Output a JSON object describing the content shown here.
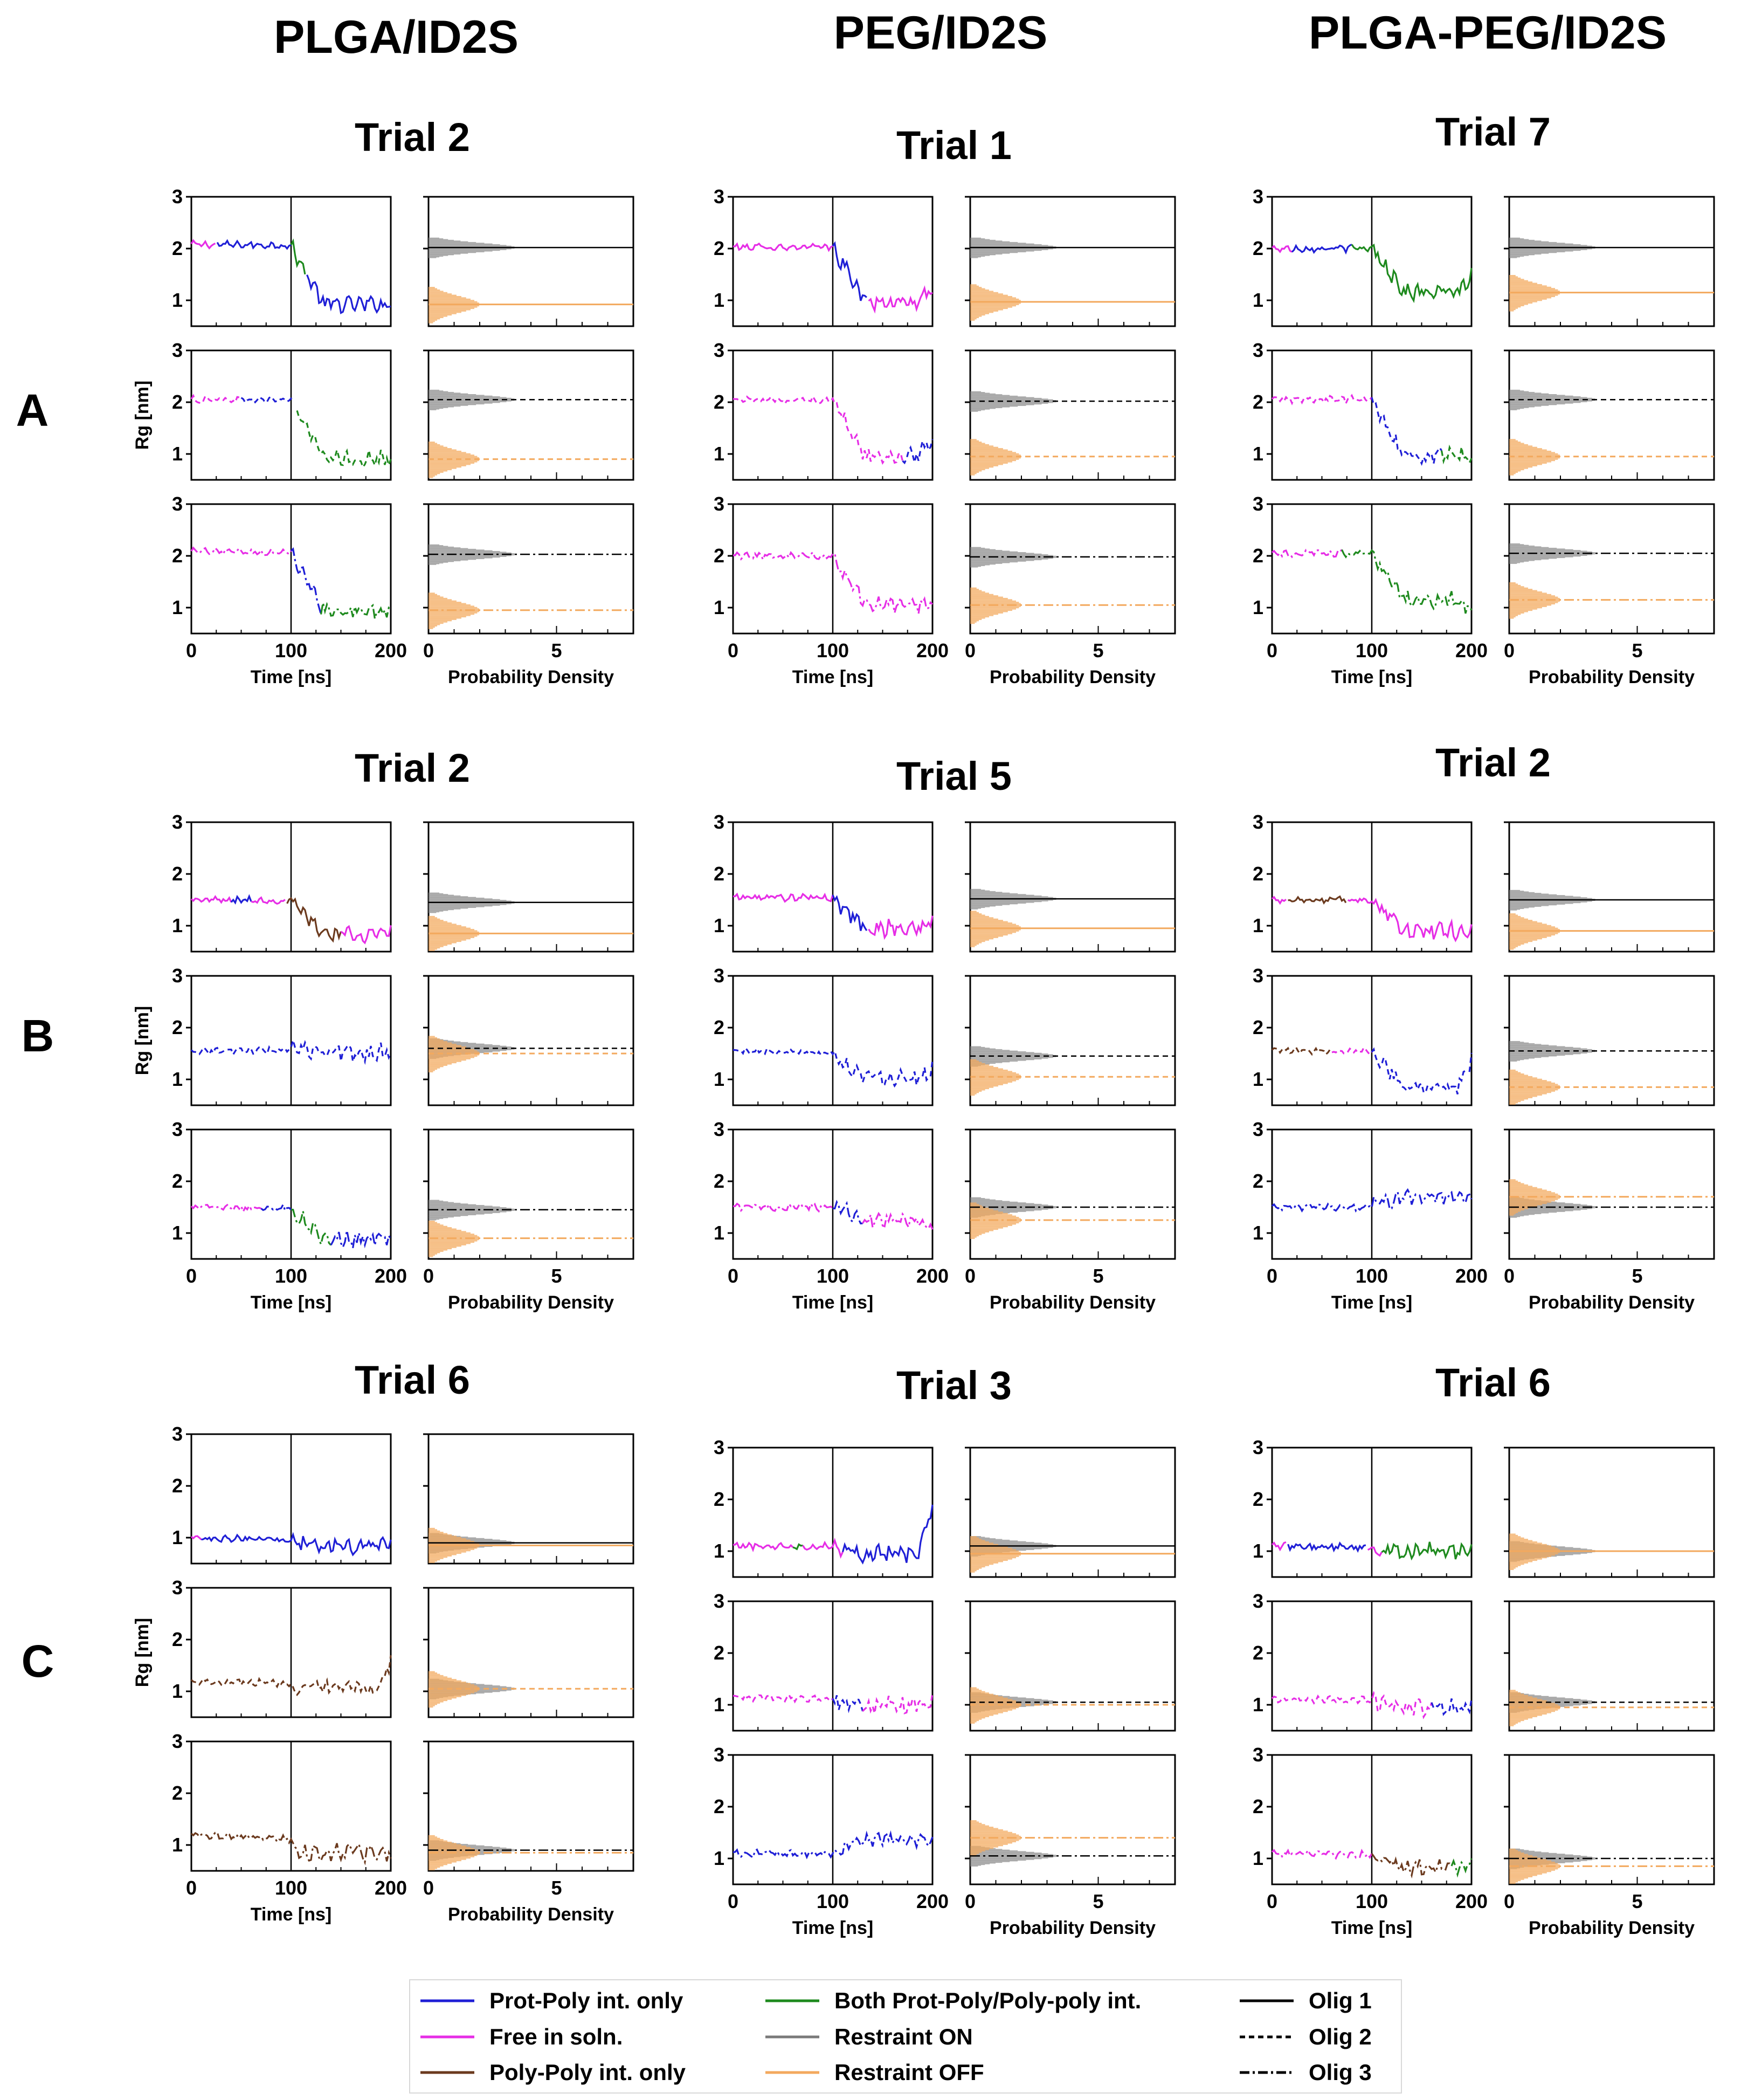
{
  "figure": {
    "column_headers": [
      "PLGA/ID2S",
      "PEG/ID2S",
      "PLGA-PEG/ID2S"
    ],
    "row_labels": [
      "A",
      "B",
      "C"
    ],
    "ylabel": "Rg [nm]",
    "xlabel_time": "Time [ns]",
    "xlabel_density": "Probability Density",
    "time_ticks": [
      "0",
      "100",
      "200"
    ],
    "density_ticks": [
      "0",
      "5"
    ],
    "rg_ticks": [
      "1",
      "2",
      "3"
    ]
  },
  "legend": {
    "items": [
      {
        "label": "Prot-Poly int. only",
        "color": "#1f1fd6",
        "style": "solid"
      },
      {
        "label": "Free in soln.",
        "color": "#e62ee6",
        "style": "solid"
      },
      {
        "label": "Poly-Poly int. only",
        "color": "#6b3a1e",
        "style": "solid"
      },
      {
        "label": "Both Prot-Poly/Poly-poly int.",
        "color": "#1e8a1e",
        "style": "solid"
      },
      {
        "label": "Restraint ON",
        "color": "#7a7a7a",
        "style": "solid"
      },
      {
        "label": "Restraint OFF",
        "color": "#f3a95e",
        "style": "solid"
      },
      {
        "label": "Olig 1",
        "color": "#000000",
        "style": "solid"
      },
      {
        "label": "Olig 2",
        "color": "#000000",
        "style": "dashed"
      },
      {
        "label": "Olig 3",
        "color": "#000000",
        "style": "dashdot"
      }
    ]
  },
  "chart_data": [
    {
      "type": "line",
      "row": "A",
      "column": "PLGA/ID2S",
      "title": "Trial 2",
      "xlabel": "Time [ns]",
      "ylabel": "Rg [nm]",
      "xlim": [
        0,
        200
      ],
      "ylim": [
        0.5,
        3
      ],
      "series": [
        {
          "name": "Olig 1",
          "style": "solid",
          "rg_start": 2.08,
          "rg_end": 0.92,
          "mean_on": 2.02,
          "mean_off": 0.92,
          "segments": [
            [
              "#e62ee6",
              0,
              25
            ],
            [
              "#1f1fd6",
              25,
              100
            ],
            [
              "#1e8a1e",
              100,
              115
            ],
            [
              "#1f1fd6",
              115,
              200
            ]
          ]
        },
        {
          "name": "Olig 2",
          "style": "dashed",
          "rg_start": 2.05,
          "rg_end": 0.9,
          "mean_on": 2.05,
          "mean_off": 0.9,
          "segments": [
            [
              "#e62ee6",
              0,
              50
            ],
            [
              "#1f1fd6",
              50,
              105
            ],
            [
              "#1e8a1e",
              105,
              200
            ]
          ]
        },
        {
          "name": "Olig 3",
          "style": "dashdot",
          "rg_start": 2.08,
          "rg_end": 0.95,
          "mean_on": 2.03,
          "mean_off": 0.95,
          "segments": [
            [
              "#e62ee6",
              0,
              100
            ],
            [
              "#1f1fd6",
              100,
              130
            ],
            [
              "#1e8a1e",
              130,
              200
            ]
          ]
        }
      ]
    },
    {
      "type": "line",
      "row": "A",
      "column": "PEG/ID2S",
      "title": "Trial 1",
      "xlabel": "Time [ns]",
      "ylabel": "Rg [nm]",
      "xlim": [
        0,
        200
      ],
      "ylim": [
        0.5,
        3
      ],
      "series": [
        {
          "name": "Olig 1",
          "style": "solid",
          "rg_start": 2.03,
          "rg_end": 1.2,
          "mean_on": 2.02,
          "mean_off": 0.97,
          "segments": [
            [
              "#e62ee6",
              0,
              100
            ],
            [
              "#1f1fd6",
              100,
              135
            ],
            [
              "#e62ee6",
              135,
              200
            ]
          ]
        },
        {
          "name": "Olig 2",
          "style": "dashed",
          "rg_start": 2.05,
          "rg_end": 1.3,
          "mean_on": 2.02,
          "mean_off": 0.95,
          "segments": [
            [
              "#e62ee6",
              0,
              170
            ],
            [
              "#1f1fd6",
              170,
              200
            ]
          ]
        },
        {
          "name": "Olig 3",
          "style": "dashdot",
          "rg_start": 2.0,
          "rg_end": 1.05,
          "mean_on": 1.98,
          "mean_off": 1.05,
          "segments": [
            [
              "#e62ee6",
              0,
              200
            ]
          ]
        }
      ]
    },
    {
      "type": "line",
      "row": "A",
      "column": "PLGA-PEG/ID2S",
      "title": "Trial 7",
      "xlabel": "Time [ns]",
      "ylabel": "Rg [nm]",
      "xlim": [
        0,
        200
      ],
      "ylim": [
        0.5,
        3
      ],
      "series": [
        {
          "name": "Olig 1",
          "style": "solid",
          "rg_start": 2.0,
          "rg_end": 1.45,
          "mean_on": 2.02,
          "mean_off": 1.15,
          "segments": [
            [
              "#e62ee6",
              0,
              20
            ],
            [
              "#1f1fd6",
              20,
              80
            ],
            [
              "#1e8a1e",
              80,
              200
            ]
          ]
        },
        {
          "name": "Olig 2",
          "style": "dashed",
          "rg_start": 2.05,
          "rg_end": 0.95,
          "mean_on": 2.05,
          "mean_off": 0.95,
          "segments": [
            [
              "#e62ee6",
              0,
              100
            ],
            [
              "#1f1fd6",
              100,
              170
            ],
            [
              "#1e8a1e",
              170,
              200
            ]
          ]
        },
        {
          "name": "Olig 3",
          "style": "dashdot",
          "rg_start": 2.05,
          "rg_end": 0.95,
          "mean_on": 2.05,
          "mean_off": 1.15,
          "segments": [
            [
              "#e62ee6",
              0,
              70
            ],
            [
              "#1e8a1e",
              70,
              200
            ]
          ]
        }
      ]
    },
    {
      "type": "line",
      "row": "B",
      "column": "PLGA/ID2S",
      "title": "Trial 2",
      "xlabel": "Time [ns]",
      "ylabel": "Rg [nm]",
      "xlim": [
        0,
        200
      ],
      "ylim": [
        0.5,
        3
      ],
      "series": [
        {
          "name": "Olig 1",
          "style": "solid",
          "rg_start": 1.5,
          "rg_end": 0.85,
          "mean_on": 1.45,
          "mean_off": 0.85,
          "segments": [
            [
              "#e62ee6",
              0,
              40
            ],
            [
              "#1f1fd6",
              40,
              60
            ],
            [
              "#e62ee6",
              60,
              95
            ],
            [
              "#6b3a1e",
              95,
              150
            ],
            [
              "#e62ee6",
              150,
              200
            ]
          ]
        },
        {
          "name": "Olig 2",
          "style": "dashed",
          "rg_start": 1.55,
          "rg_end": 1.55,
          "mean_on": 1.6,
          "mean_off": 1.5,
          "segments": [
            [
              "#1f1fd6",
              0,
              200
            ]
          ]
        },
        {
          "name": "Olig 3",
          "style": "dashdot",
          "rg_start": 1.5,
          "rg_end": 0.9,
          "mean_on": 1.45,
          "mean_off": 0.9,
          "segments": [
            [
              "#e62ee6",
              0,
              70
            ],
            [
              "#1f1fd6",
              70,
              100
            ],
            [
              "#1e8a1e",
              100,
              140
            ],
            [
              "#1f1fd6",
              140,
              200
            ]
          ]
        }
      ]
    },
    {
      "type": "line",
      "row": "B",
      "column": "PEG/ID2S",
      "title": "Trial 5",
      "xlabel": "Time [ns]",
      "ylabel": "Rg [nm]",
      "xlim": [
        0,
        200
      ],
      "ylim": [
        0.5,
        3
      ],
      "series": [
        {
          "name": "Olig 1",
          "style": "solid",
          "rg_start": 1.55,
          "rg_end": 1.05,
          "mean_on": 1.52,
          "mean_off": 0.95,
          "segments": [
            [
              "#e62ee6",
              0,
              100
            ],
            [
              "#1f1fd6",
              100,
              135
            ],
            [
              "#e62ee6",
              135,
              200
            ]
          ]
        },
        {
          "name": "Olig 2",
          "style": "dashed",
          "rg_start": 1.55,
          "rg_end": 1.2,
          "mean_on": 1.45,
          "mean_off": 1.05,
          "segments": [
            [
              "#1f1fd6",
              0,
              200
            ]
          ]
        },
        {
          "name": "Olig 3",
          "style": "dashdot",
          "rg_start": 1.5,
          "rg_end": 1.1,
          "mean_on": 1.5,
          "mean_off": 1.25,
          "segments": [
            [
              "#e62ee6",
              0,
              100
            ],
            [
              "#1f1fd6",
              100,
              130
            ],
            [
              "#e62ee6",
              130,
              200
            ]
          ]
        }
      ]
    },
    {
      "type": "line",
      "row": "B",
      "column": "PLGA-PEG/ID2S",
      "title": "Trial 2",
      "xlabel": "Time [ns]",
      "ylabel": "Rg [nm]",
      "xlim": [
        0,
        200
      ],
      "ylim": [
        0.5,
        3
      ],
      "series": [
        {
          "name": "Olig 1",
          "style": "solid",
          "rg_start": 1.5,
          "rg_end": 0.9,
          "mean_on": 1.5,
          "mean_off": 0.9,
          "segments": [
            [
              "#e62ee6",
              0,
              15
            ],
            [
              "#6b3a1e",
              15,
              75
            ],
            [
              "#e62ee6",
              75,
              200
            ]
          ]
        },
        {
          "name": "Olig 2",
          "style": "dashed",
          "rg_start": 1.55,
          "rg_end": 1.35,
          "mean_on": 1.55,
          "mean_off": 0.85,
          "segments": [
            [
              "#6b3a1e",
              0,
              60
            ],
            [
              "#e62ee6",
              60,
              100
            ],
            [
              "#1f1fd6",
              100,
              200
            ]
          ]
        },
        {
          "name": "Olig 3",
          "style": "dashdot",
          "rg_start": 1.5,
          "rg_end": 1.7,
          "mean_on": 1.5,
          "mean_off": 1.7,
          "segments": [
            [
              "#1f1fd6",
              0,
              200
            ]
          ]
        }
      ]
    },
    {
      "type": "line",
      "row": "C",
      "column": "PLGA/ID2S",
      "title": "Trial 6",
      "xlabel": "Time [ns]",
      "ylabel": "Rg [nm]",
      "xlim": [
        0,
        200
      ],
      "ylim": [
        0.5,
        3
      ],
      "series": [
        {
          "name": "Olig 1",
          "style": "solid",
          "rg_start": 1.0,
          "rg_end": 0.85,
          "mean_on": 0.9,
          "mean_off": 0.85,
          "segments": [
            [
              "#e62ee6",
              0,
              10
            ],
            [
              "#1f1fd6",
              10,
              200
            ]
          ]
        },
        {
          "name": "Olig 2",
          "style": "dashed",
          "rg_start": 1.2,
          "rg_end": 1.55,
          "mean_on": 1.05,
          "mean_off": 1.05,
          "segments": [
            [
              "#6b3a1e",
              0,
              200
            ]
          ]
        },
        {
          "name": "Olig 3",
          "style": "dashdot",
          "rg_start": 1.2,
          "rg_end": 0.8,
          "mean_on": 0.9,
          "mean_off": 0.85,
          "segments": [
            [
              "#6b3a1e",
              0,
              200
            ]
          ]
        }
      ]
    },
    {
      "type": "line",
      "row": "C",
      "column": "PEG/ID2S",
      "title": "Trial 3",
      "xlabel": "Time [ns]",
      "ylabel": "Rg [nm]",
      "xlim": [
        0,
        200
      ],
      "ylim": [
        0.5,
        3
      ],
      "series": [
        {
          "name": "Olig 1",
          "style": "solid",
          "rg_start": 1.1,
          "rg_end": 1.8,
          "mean_on": 1.1,
          "mean_off": 0.95,
          "segments": [
            [
              "#e62ee6",
              0,
              60
            ],
            [
              "#1e8a1e",
              60,
              70
            ],
            [
              "#e62ee6",
              70,
              110
            ],
            [
              "#1f1fd6",
              110,
              200
            ]
          ]
        },
        {
          "name": "Olig 2",
          "style": "dashed",
          "rg_start": 1.15,
          "rg_end": 1.1,
          "mean_on": 1.05,
          "mean_off": 1.0,
          "segments": [
            [
              "#e62ee6",
              0,
              100
            ],
            [
              "#1f1fd6",
              100,
              130
            ],
            [
              "#e62ee6",
              130,
              200
            ]
          ]
        },
        {
          "name": "Olig 3",
          "style": "dashdot",
          "rg_start": 1.1,
          "rg_end": 1.25,
          "mean_on": 1.05,
          "mean_off": 1.4,
          "segments": [
            [
              "#1f1fd6",
              0,
              200
            ]
          ]
        }
      ]
    },
    {
      "type": "line",
      "row": "C",
      "column": "PLGA-PEG/ID2S",
      "title": "Trial 6",
      "xlabel": "Time [ns]",
      "ylabel": "Rg [nm]",
      "xlim": [
        0,
        200
      ],
      "ylim": [
        0.5,
        3
      ],
      "series": [
        {
          "name": "Olig 1",
          "style": "solid",
          "rg_start": 1.1,
          "rg_end": 1.05,
          "mean_on": 1.0,
          "mean_off": 1.0,
          "segments": [
            [
              "#e62ee6",
              0,
              15
            ],
            [
              "#1f1fd6",
              15,
              95
            ],
            [
              "#e62ee6",
              95,
              110
            ],
            [
              "#1e8a1e",
              110,
              200
            ]
          ]
        },
        {
          "name": "Olig 2",
          "style": "dashed",
          "rg_start": 1.1,
          "rg_end": 1.0,
          "mean_on": 1.05,
          "mean_off": 0.95,
          "segments": [
            [
              "#e62ee6",
              0,
              160
            ],
            [
              "#1f1fd6",
              160,
              200
            ]
          ]
        },
        {
          "name": "Olig 3",
          "style": "dashdot",
          "rg_start": 1.1,
          "rg_end": 0.85,
          "mean_on": 1.0,
          "mean_off": 0.85,
          "segments": [
            [
              "#e62ee6",
              0,
              100
            ],
            [
              "#6b3a1e",
              100,
              180
            ],
            [
              "#1e8a1e",
              180,
              200
            ]
          ]
        }
      ]
    }
  ]
}
